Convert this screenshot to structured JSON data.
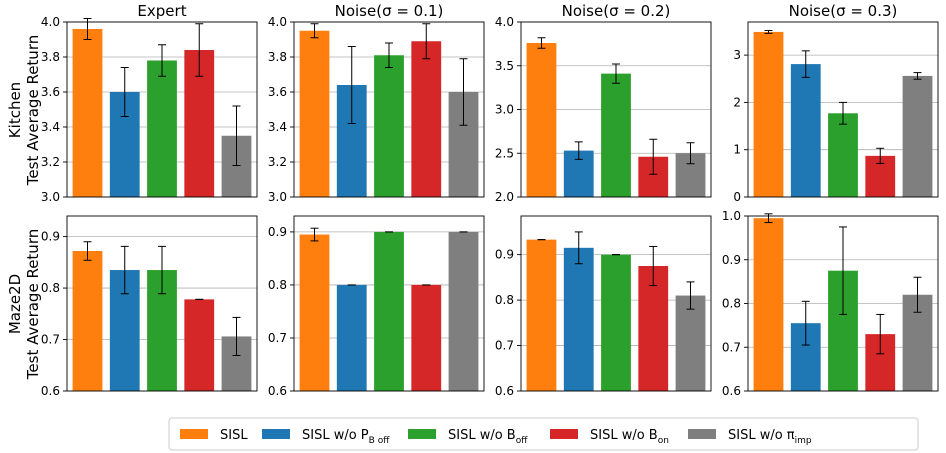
{
  "figure": {
    "legend": [
      {
        "label": "SISL",
        "sub": "",
        "color": "#ff7f0e"
      },
      {
        "label": "SISL w/o P",
        "sub": "B off",
        "color": "#1f77b4"
      },
      {
        "label": "SISL w/o B",
        "sub": "off",
        "color": "#2ca02c"
      },
      {
        "label": "SISL w/o B",
        "sub": "on",
        "color": "#d62728"
      },
      {
        "label": "SISL w/o π",
        "sub": "imp",
        "color": "#7f7f7f"
      }
    ],
    "row_labels": [
      [
        "Kitchen",
        "Test Average Return"
      ],
      [
        "Maze2D",
        "Test Average Return"
      ]
    ]
  },
  "chart_data": [
    {
      "type": "bar",
      "title": "Expert",
      "row": 0,
      "col": 0,
      "categories": [
        "SISL",
        "SISL w/o P_Boff",
        "SISL w/o B_off",
        "SISL w/o B_on",
        "SISL w/o π_imp"
      ],
      "values": [
        3.96,
        3.6,
        3.78,
        3.84,
        3.35
      ],
      "errors": [
        0.06,
        0.14,
        0.09,
        0.15,
        0.17
      ],
      "ylim": [
        3.0,
        4.0
      ],
      "yticks": [
        3.0,
        3.2,
        3.4,
        3.6,
        3.8,
        4.0
      ],
      "ytick_labels": [
        "3.0",
        "3.2",
        "3.4",
        "3.6",
        "3.8",
        "4.0"
      ]
    },
    {
      "type": "bar",
      "title": "Noise(σ = 0.1)",
      "row": 0,
      "col": 1,
      "categories": [
        "SISL",
        "SISL w/o P_Boff",
        "SISL w/o B_off",
        "SISL w/o B_on",
        "SISL w/o π_imp"
      ],
      "values": [
        3.95,
        3.64,
        3.81,
        3.89,
        3.6
      ],
      "errors": [
        0.04,
        0.22,
        0.07,
        0.1,
        0.19
      ],
      "ylim": [
        3.0,
        4.0
      ],
      "yticks": [
        3.0,
        3.2,
        3.4,
        3.6,
        3.8,
        4.0
      ],
      "ytick_labels": [
        "3.0",
        "3.2",
        "3.4",
        "3.6",
        "3.8",
        "4.0"
      ]
    },
    {
      "type": "bar",
      "title": "Noise(σ = 0.2)",
      "row": 0,
      "col": 2,
      "categories": [
        "SISL",
        "SISL w/o P_Boff",
        "SISL w/o B_off",
        "SISL w/o B_on",
        "SISL w/o π_imp"
      ],
      "values": [
        3.76,
        2.53,
        3.41,
        2.46,
        2.5
      ],
      "errors": [
        0.06,
        0.1,
        0.11,
        0.2,
        0.12
      ],
      "ylim": [
        2.0,
        4.0
      ],
      "yticks": [
        2.0,
        2.5,
        3.0,
        3.5,
        4.0
      ],
      "ytick_labels": [
        "2.0",
        "2.5",
        "3.0",
        "3.5",
        "4.0"
      ]
    },
    {
      "type": "bar",
      "title": "Noise(σ = 0.3)",
      "row": 0,
      "col": 3,
      "categories": [
        "SISL",
        "SISL w/o P_Boff",
        "SISL w/o B_off",
        "SISL w/o B_on",
        "SISL w/o π_imp"
      ],
      "values": [
        3.49,
        2.81,
        1.77,
        0.87,
        2.56
      ],
      "errors": [
        0.03,
        0.28,
        0.23,
        0.16,
        0.07
      ],
      "ylim": [
        0,
        3.7
      ],
      "yticks": [
        0,
        1,
        2,
        3
      ],
      "ytick_labels": [
        "0",
        "1",
        "2",
        "3"
      ]
    },
    {
      "type": "bar",
      "title": "",
      "row": 1,
      "col": 0,
      "categories": [
        "SISL",
        "SISL w/o P_Boff",
        "SISL w/o B_off",
        "SISL w/o B_on",
        "SISL w/o π_imp"
      ],
      "values": [
        0.872,
        0.835,
        0.835,
        0.778,
        0.706
      ],
      "errors": [
        0.018,
        0.046,
        0.046,
        0.0,
        0.037
      ],
      "ylim": [
        0.6,
        0.94
      ],
      "yticks": [
        0.6,
        0.7,
        0.8,
        0.9
      ],
      "ytick_labels": [
        "0.6",
        "0.7",
        "0.8",
        "0.9"
      ]
    },
    {
      "type": "bar",
      "title": "",
      "row": 1,
      "col": 1,
      "categories": [
        "SISL",
        "SISL w/o P_Boff",
        "SISL w/o B_off",
        "SISL w/o B_on",
        "SISL w/o π_imp"
      ],
      "values": [
        0.895,
        0.8,
        0.9,
        0.8,
        0.9
      ],
      "errors": [
        0.012,
        0.0,
        0.0,
        0.0,
        0.0
      ],
      "ylim": [
        0.6,
        0.93
      ],
      "yticks": [
        0.6,
        0.7,
        0.8,
        0.9
      ],
      "ytick_labels": [
        "0.6",
        "0.7",
        "0.8",
        "0.9"
      ]
    },
    {
      "type": "bar",
      "title": "",
      "row": 1,
      "col": 2,
      "categories": [
        "SISL",
        "SISL w/o P_Boff",
        "SISL w/o B_off",
        "SISL w/o B_on",
        "SISL w/o π_imp"
      ],
      "values": [
        0.933,
        0.915,
        0.9,
        0.875,
        0.81
      ],
      "errors": [
        0.0,
        0.035,
        0.0,
        0.043,
        0.03
      ],
      "ylim": [
        0.6,
        0.985
      ],
      "yticks": [
        0.6,
        0.7,
        0.8,
        0.9
      ],
      "ytick_labels": [
        "0.6",
        "0.7",
        "0.8",
        "0.9"
      ]
    },
    {
      "type": "bar",
      "title": "",
      "row": 1,
      "col": 3,
      "categories": [
        "SISL",
        "SISL w/o P_Boff",
        "SISL w/o B_off",
        "SISL w/o B_on",
        "SISL w/o π_imp"
      ],
      "values": [
        0.995,
        0.755,
        0.875,
        0.73,
        0.82
      ],
      "errors": [
        0.01,
        0.05,
        0.1,
        0.045,
        0.04
      ],
      "ylim": [
        0.6,
        1.0
      ],
      "yticks": [
        0.6,
        0.7,
        0.8,
        0.9,
        1.0
      ],
      "ytick_labels": [
        "0.6",
        "0.7",
        "0.8",
        "0.9",
        "1.0"
      ]
    }
  ]
}
